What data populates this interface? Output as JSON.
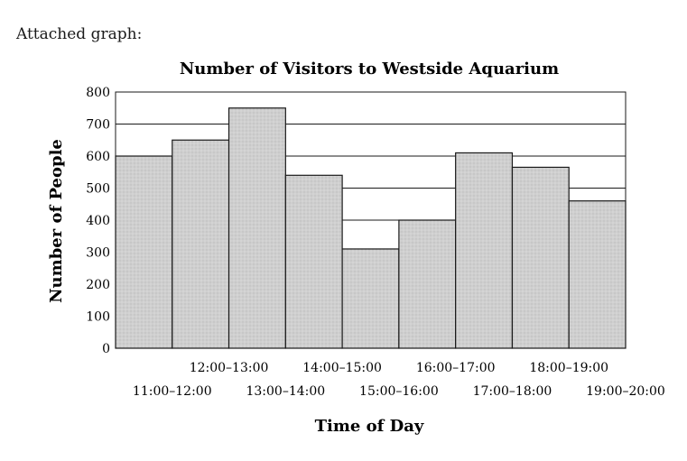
{
  "intro_text": "Attached graph:",
  "chart_data": {
    "type": "bar",
    "title": "Number of Visitors to Westside Aquarium",
    "xlabel": "Time of Day",
    "ylabel": "Number of People",
    "ylim": [
      0,
      800
    ],
    "yticks": [
      0,
      100,
      200,
      300,
      400,
      500,
      600,
      700,
      800
    ],
    "grid": true,
    "categories": [
      "11:00–12:00",
      "12:00–13:00",
      "13:00–14:00",
      "14:00–15:00",
      "15:00–16:00",
      "16:00–17:00",
      "17:00–18:00",
      "18:00–19:00",
      "19:00–20:00"
    ],
    "values": [
      600,
      650,
      750,
      540,
      310,
      400,
      610,
      565,
      460
    ],
    "bar_color": "#cfcfcf",
    "grid_color": "#1a1a1a"
  }
}
